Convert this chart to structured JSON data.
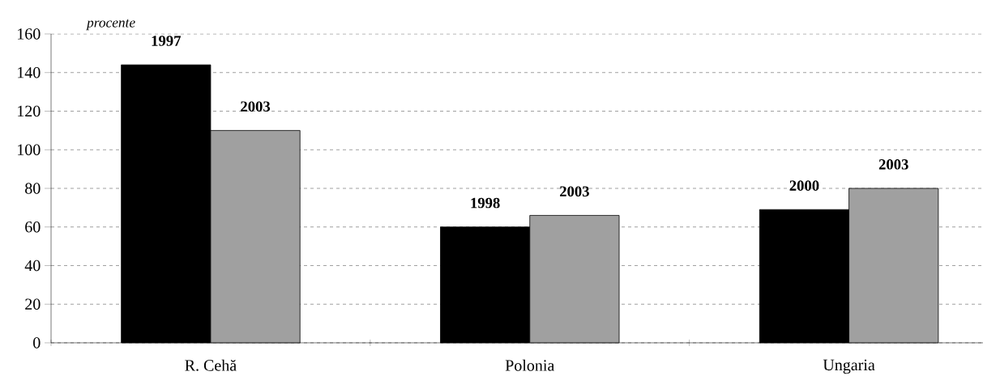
{
  "chart_data": {
    "type": "bar",
    "ylabel": "procente",
    "categories": [
      "R. Cehă",
      "Polonia",
      "Ungaria"
    ],
    "series": [
      {
        "color": "#000000",
        "values": [
          144,
          60,
          69
        ]
      },
      {
        "color": "#a0a0a0",
        "values": [
          110,
          66,
          80
        ]
      }
    ],
    "annotations": [
      {
        "text": "1997",
        "x": "R. Cehă",
        "y": 144
      },
      {
        "text": "2003",
        "x": "R. Cehă",
        "y": 110
      },
      {
        "text": "1998",
        "x": "Polonia",
        "y": 60
      },
      {
        "text": "2003",
        "x": "Polonia",
        "y": 66
      },
      {
        "text": "2000",
        "x": "Ungaria",
        "y": 69
      },
      {
        "text": "2003",
        "x": "Ungaria",
        "y": 80
      }
    ],
    "ylim": [
      0,
      160
    ],
    "yticks": [
      0,
      20,
      40,
      60,
      80,
      100,
      120,
      140,
      160
    ],
    "grid": "y"
  }
}
